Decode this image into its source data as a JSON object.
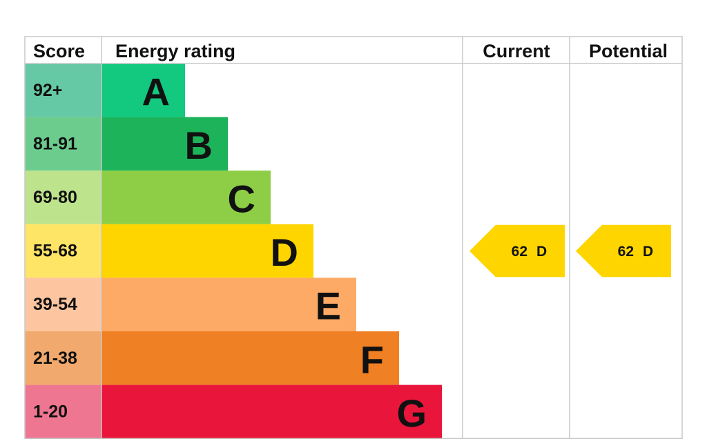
{
  "header": {
    "score": "Score",
    "rating": "Energy rating",
    "current": "Current",
    "potential": "Potential"
  },
  "rows": [
    {
      "score": "92+",
      "band": "A"
    },
    {
      "score": "81-91",
      "band": "B"
    },
    {
      "score": "69-80",
      "band": "C"
    },
    {
      "score": "55-68",
      "band": "D"
    },
    {
      "score": "39-54",
      "band": "E"
    },
    {
      "score": "21-38",
      "band": "F"
    },
    {
      "score": "1-20",
      "band": "G"
    }
  ],
  "current": {
    "score": 62,
    "band": "D"
  },
  "potential": {
    "score": 62,
    "band": "D"
  }
}
